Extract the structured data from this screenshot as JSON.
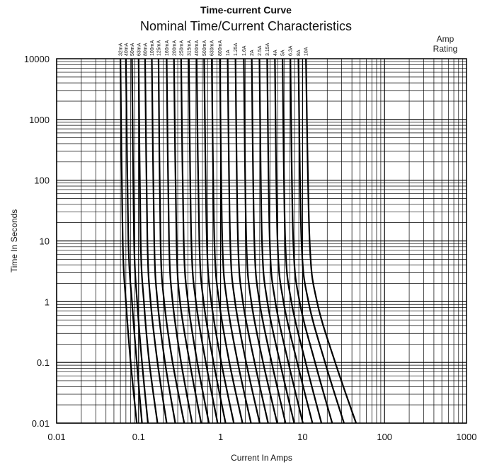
{
  "chart_data": {
    "type": "line",
    "title": "Time-current Curve",
    "subtitle": "Nominal Time/Current Characteristics",
    "legend_title": "Amp Rating",
    "xlabel": "Current In Amps",
    "ylabel": "Time In Seconds",
    "x_scale": "log",
    "y_scale": "log",
    "xlim": [
      0.01,
      1000
    ],
    "ylim": [
      0.01,
      10000
    ],
    "x_ticks": [
      "0.01",
      "0.1",
      "1",
      "10",
      "100",
      "1000"
    ],
    "y_ticks": [
      "0.01",
      "0.1",
      "1",
      "10",
      "100",
      "1000",
      "10000"
    ],
    "grid": true,
    "series": [
      {
        "name": "32mA",
        "rating": 0.032,
        "points": [
          [
            0.06,
            10000
          ],
          [
            0.064,
            10
          ],
          [
            0.07,
            1
          ],
          [
            0.08,
            0.1
          ],
          [
            0.095,
            0.01
          ]
        ]
      },
      {
        "name": "40mA",
        "rating": 0.04,
        "points": [
          [
            0.07,
            10000
          ],
          [
            0.075,
            10
          ],
          [
            0.083,
            1
          ],
          [
            0.095,
            0.1
          ],
          [
            0.11,
            0.01
          ]
        ]
      },
      {
        "name": "50mA",
        "rating": 0.05,
        "points": [
          [
            0.083,
            10000
          ],
          [
            0.088,
            10
          ],
          [
            0.096,
            1
          ],
          [
            0.11,
            0.1
          ],
          [
            0.13,
            0.01
          ]
        ]
      },
      {
        "name": "63mA",
        "rating": 0.063,
        "points": [
          [
            0.1,
            10000
          ],
          [
            0.106,
            10
          ],
          [
            0.116,
            1
          ],
          [
            0.135,
            0.1
          ],
          [
            0.17,
            0.01
          ]
        ]
      },
      {
        "name": "80mA",
        "rating": 0.08,
        "points": [
          [
            0.12,
            10000
          ],
          [
            0.128,
            10
          ],
          [
            0.14,
            1
          ],
          [
            0.17,
            0.1
          ],
          [
            0.22,
            0.01
          ]
        ]
      },
      {
        "name": "100mA",
        "rating": 0.1,
        "points": [
          [
            0.145,
            10000
          ],
          [
            0.155,
            10
          ],
          [
            0.17,
            1
          ],
          [
            0.21,
            0.1
          ],
          [
            0.28,
            0.01
          ]
        ]
      },
      {
        "name": "125mA",
        "rating": 0.125,
        "points": [
          [
            0.175,
            10000
          ],
          [
            0.185,
            10
          ],
          [
            0.205,
            1
          ],
          [
            0.26,
            0.1
          ],
          [
            0.36,
            0.01
          ]
        ]
      },
      {
        "name": "160mA",
        "rating": 0.16,
        "points": [
          [
            0.22,
            10000
          ],
          [
            0.235,
            10
          ],
          [
            0.26,
            1
          ],
          [
            0.33,
            0.1
          ],
          [
            0.45,
            0.01
          ]
        ]
      },
      {
        "name": "200mA",
        "rating": 0.2,
        "points": [
          [
            0.27,
            10000
          ],
          [
            0.29,
            10
          ],
          [
            0.32,
            1
          ],
          [
            0.42,
            0.1
          ],
          [
            0.58,
            0.01
          ]
        ]
      },
      {
        "name": "250mA",
        "rating": 0.25,
        "points": [
          [
            0.33,
            10000
          ],
          [
            0.355,
            10
          ],
          [
            0.4,
            1
          ],
          [
            0.52,
            0.1
          ],
          [
            0.72,
            0.01
          ]
        ]
      },
      {
        "name": "315mA",
        "rating": 0.315,
        "points": [
          [
            0.41,
            10000
          ],
          [
            0.44,
            10
          ],
          [
            0.5,
            1
          ],
          [
            0.66,
            0.1
          ],
          [
            0.92,
            0.01
          ]
        ]
      },
      {
        "name": "400mA",
        "rating": 0.4,
        "points": [
          [
            0.51,
            10000
          ],
          [
            0.55,
            10
          ],
          [
            0.62,
            1
          ],
          [
            0.82,
            0.1
          ],
          [
            1.15,
            0.01
          ]
        ]
      },
      {
        "name": "500mA",
        "rating": 0.5,
        "points": [
          [
            0.63,
            10000
          ],
          [
            0.68,
            10
          ],
          [
            0.77,
            1
          ],
          [
            1.02,
            0.1
          ],
          [
            1.45,
            0.01
          ]
        ]
      },
      {
        "name": "630mA",
        "rating": 0.63,
        "points": [
          [
            0.78,
            10000
          ],
          [
            0.84,
            10
          ],
          [
            0.96,
            1
          ],
          [
            1.28,
            0.1
          ],
          [
            1.85,
            0.01
          ]
        ]
      },
      {
        "name": "800mA",
        "rating": 0.8,
        "points": [
          [
            0.98,
            10000
          ],
          [
            1.05,
            10
          ],
          [
            1.2,
            1
          ],
          [
            1.62,
            0.1
          ],
          [
            2.35,
            0.01
          ]
        ]
      },
      {
        "name": "1A",
        "rating": 1,
        "points": [
          [
            1.22,
            10000
          ],
          [
            1.31,
            10
          ],
          [
            1.5,
            1
          ],
          [
            2.05,
            0.1
          ],
          [
            3.0,
            0.01
          ]
        ]
      },
      {
        "name": "1.25A",
        "rating": 1.25,
        "points": [
          [
            1.52,
            10000
          ],
          [
            1.63,
            10
          ],
          [
            1.87,
            1
          ],
          [
            2.6,
            0.1
          ],
          [
            3.8,
            0.01
          ]
        ]
      },
      {
        "name": "1.6A",
        "rating": 1.6,
        "points": [
          [
            1.92,
            10000
          ],
          [
            2.06,
            10
          ],
          [
            2.37,
            1
          ],
          [
            3.3,
            0.1
          ],
          [
            4.9,
            0.01
          ]
        ]
      },
      {
        "name": "2A",
        "rating": 2,
        "points": [
          [
            2.4,
            10000
          ],
          [
            2.58,
            10
          ],
          [
            2.98,
            1
          ],
          [
            4.2,
            0.1
          ],
          [
            6.2,
            0.01
          ]
        ]
      },
      {
        "name": "2.5A",
        "rating": 2.5,
        "points": [
          [
            2.98,
            10000
          ],
          [
            3.2,
            10
          ],
          [
            3.72,
            1
          ],
          [
            5.3,
            0.1
          ],
          [
            7.9,
            0.01
          ]
        ]
      },
      {
        "name": "3.15A",
        "rating": 3.15,
        "points": [
          [
            3.7,
            10000
          ],
          [
            3.98,
            10
          ],
          [
            4.65,
            1
          ],
          [
            6.7,
            0.1
          ],
          [
            10.1,
            0.01
          ]
        ]
      },
      {
        "name": "4A",
        "rating": 4,
        "points": [
          [
            4.6,
            10000
          ],
          [
            4.95,
            10
          ],
          [
            5.85,
            1
          ],
          [
            8.6,
            0.1
          ],
          [
            13.2,
            0.01
          ]
        ]
      },
      {
        "name": "5A",
        "rating": 5,
        "points": [
          [
            5.7,
            10000
          ],
          [
            6.15,
            10
          ],
          [
            7.3,
            1
          ],
          [
            10.9,
            0.1
          ],
          [
            17.0,
            0.01
          ]
        ]
      },
      {
        "name": "6.3A",
        "rating": 6.3,
        "points": [
          [
            7.1,
            10000
          ],
          [
            7.7,
            10
          ],
          [
            9.2,
            1
          ],
          [
            14.2,
            0.1
          ],
          [
            23.0,
            0.01
          ]
        ]
      },
      {
        "name": "8A",
        "rating": 8,
        "points": [
          [
            8.9,
            10000
          ],
          [
            9.7,
            10
          ],
          [
            11.8,
            1
          ],
          [
            18.8,
            0.1
          ],
          [
            32.0,
            0.01
          ]
        ]
      },
      {
        "name": "10A",
        "rating": 10,
        "points": [
          [
            11.0,
            10000
          ],
          [
            12.2,
            10
          ],
          [
            15.0,
            1
          ],
          [
            25.0,
            0.1
          ],
          [
            45.0,
            0.01
          ]
        ]
      }
    ]
  }
}
